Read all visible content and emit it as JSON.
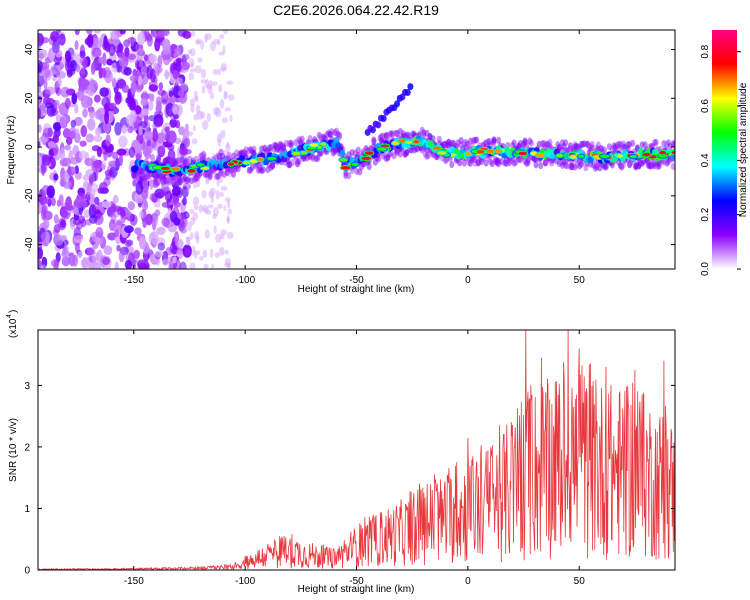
{
  "title": "C2E6.2026.064.22.42.R19",
  "chart_data": [
    {
      "type": "heatmap",
      "name": "spectrogram",
      "xlabel": "Height of straight line (km)",
      "ylabel": "Frequency (Hz)",
      "xlim": [
        -193,
        93
      ],
      "ylim": [
        -50,
        48
      ],
      "xticks": [
        -150,
        -100,
        -50,
        0,
        50
      ],
      "xtick_labels": [
        "-150",
        "-100",
        "-50",
        "0",
        "50"
      ],
      "yticks": [
        -40,
        -20,
        0,
        20,
        40
      ],
      "ytick_labels": [
        "-40",
        "-20",
        "0",
        "20",
        "40"
      ],
      "colorbar": {
        "label": "Normalized spectral amplitude",
        "range": [
          0.0,
          0.88
        ],
        "ticks": [
          0.0,
          0.2,
          0.4,
          0.6,
          0.8
        ],
        "tick_labels": [
          "0.0",
          "0.2",
          "0.4",
          "0.6",
          "0.8"
        ],
        "colors": [
          "#ffffff",
          "#8a00ff",
          "#0000ff",
          "#00ffff",
          "#00ff00",
          "#ffff00",
          "#ff0000",
          "#ff0080"
        ]
      },
      "ridge": {
        "x": [
          -145,
          -130,
          -120,
          -100,
          -80,
          -65,
          -58,
          -55,
          -50,
          -40,
          -30,
          -20,
          -10,
          0,
          20,
          40,
          60,
          80,
          93
        ],
        "y": [
          -8,
          -10,
          -8,
          -6,
          -3,
          1,
          2,
          -8,
          -6,
          -1,
          2,
          2,
          -3,
          -2,
          -2,
          -3,
          -4,
          -3,
          -3
        ]
      },
      "ghost_branch": {
        "x": [
          -45,
          -40,
          -35,
          -30,
          -25
        ],
        "y": [
          6,
          10,
          15,
          20,
          25
        ]
      }
    },
    {
      "type": "line",
      "name": "snr",
      "xlabel": "Height of straight line (km)",
      "ylabel": "SNR (10 * v/v)",
      "scale_label": "(x10",
      "scale_exp": "4",
      "scale_close": ")",
      "xlim": [
        -193,
        93
      ],
      "ylim": [
        0,
        3.9
      ],
      "xticks": [
        -150,
        -100,
        -50,
        0,
        50
      ],
      "xtick_labels": [
        "-150",
        "-100",
        "-50",
        "0",
        "50"
      ],
      "yticks": [
        0,
        1,
        2,
        3
      ],
      "ytick_labels": [
        "0",
        "1",
        "2",
        "3"
      ],
      "color": "#e8383d",
      "envelope": {
        "x": [
          -193,
          -150,
          -120,
          -105,
          -100,
          -90,
          -80,
          -70,
          -60,
          -55,
          -50,
          -40,
          -30,
          -20,
          -10,
          0,
          10,
          20,
          30,
          40,
          50,
          60,
          70,
          80,
          93
        ],
        "y": [
          0.02,
          0.03,
          0.05,
          0.1,
          0.22,
          0.45,
          0.6,
          0.45,
          0.35,
          0.5,
          0.75,
          0.95,
          1.15,
          1.4,
          1.6,
          1.85,
          2.05,
          2.5,
          3.0,
          3.2,
          3.3,
          3.1,
          3.0,
          2.9,
          2.4
        ]
      },
      "peaks": {
        "x": [
          -15,
          -5,
          0,
          26,
          33,
          45,
          50,
          62,
          75,
          88
        ],
        "y": [
          1.55,
          1.75,
          2.15,
          3.9,
          3.45,
          3.95,
          3.6,
          3.3,
          3.25,
          3.4
        ]
      }
    }
  ]
}
